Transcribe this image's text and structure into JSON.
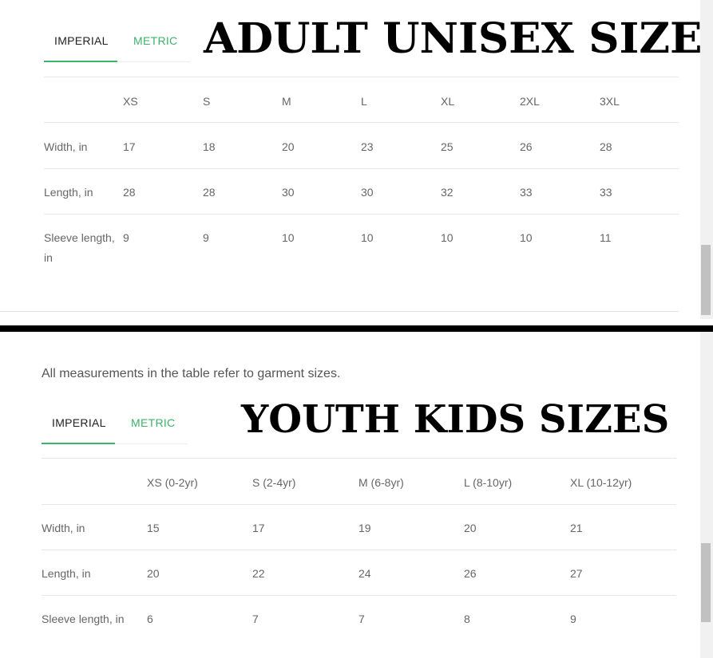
{
  "adult": {
    "title": "ADULT UNISEX SIZES",
    "tabs": [
      {
        "label": "IMPERIAL",
        "active": true
      },
      {
        "label": "METRIC",
        "active": false
      }
    ],
    "columns": [
      "XS",
      "S",
      "M",
      "L",
      "XL",
      "2XL",
      "3XL"
    ],
    "rows": [
      {
        "label": "Width, in",
        "values": [
          "17",
          "18",
          "20",
          "23",
          "25",
          "26",
          "28"
        ]
      },
      {
        "label": "Length, in",
        "values": [
          "28",
          "28",
          "30",
          "30",
          "32",
          "33",
          "33"
        ]
      },
      {
        "label": "Sleeve length, in",
        "values": [
          "9",
          "9",
          "10",
          "10",
          "10",
          "10",
          "11"
        ]
      }
    ]
  },
  "youth": {
    "note": "All measurements in the table refer to garment sizes.",
    "title": "YOUTH KIDS SIZES",
    "tabs": [
      {
        "label": "IMPERIAL",
        "active": true
      },
      {
        "label": "METRIC",
        "active": false
      }
    ],
    "columns": [
      "XS (0-2yr)",
      "S (2-4yr)",
      "M (6-8yr)",
      "L (8-10yr)",
      "XL (10-12yr)"
    ],
    "rows": [
      {
        "label": "Width, in",
        "values": [
          "15",
          "17",
          "19",
          "20",
          "21"
        ]
      },
      {
        "label": "Length, in",
        "values": [
          "20",
          "22",
          "24",
          "26",
          "27"
        ]
      },
      {
        "label": "Sleeve length, in",
        "values": [
          "6",
          "7",
          "7",
          "8",
          "9"
        ]
      }
    ]
  },
  "colors": {
    "accent": "#3bb36a",
    "divider": "#000000"
  }
}
